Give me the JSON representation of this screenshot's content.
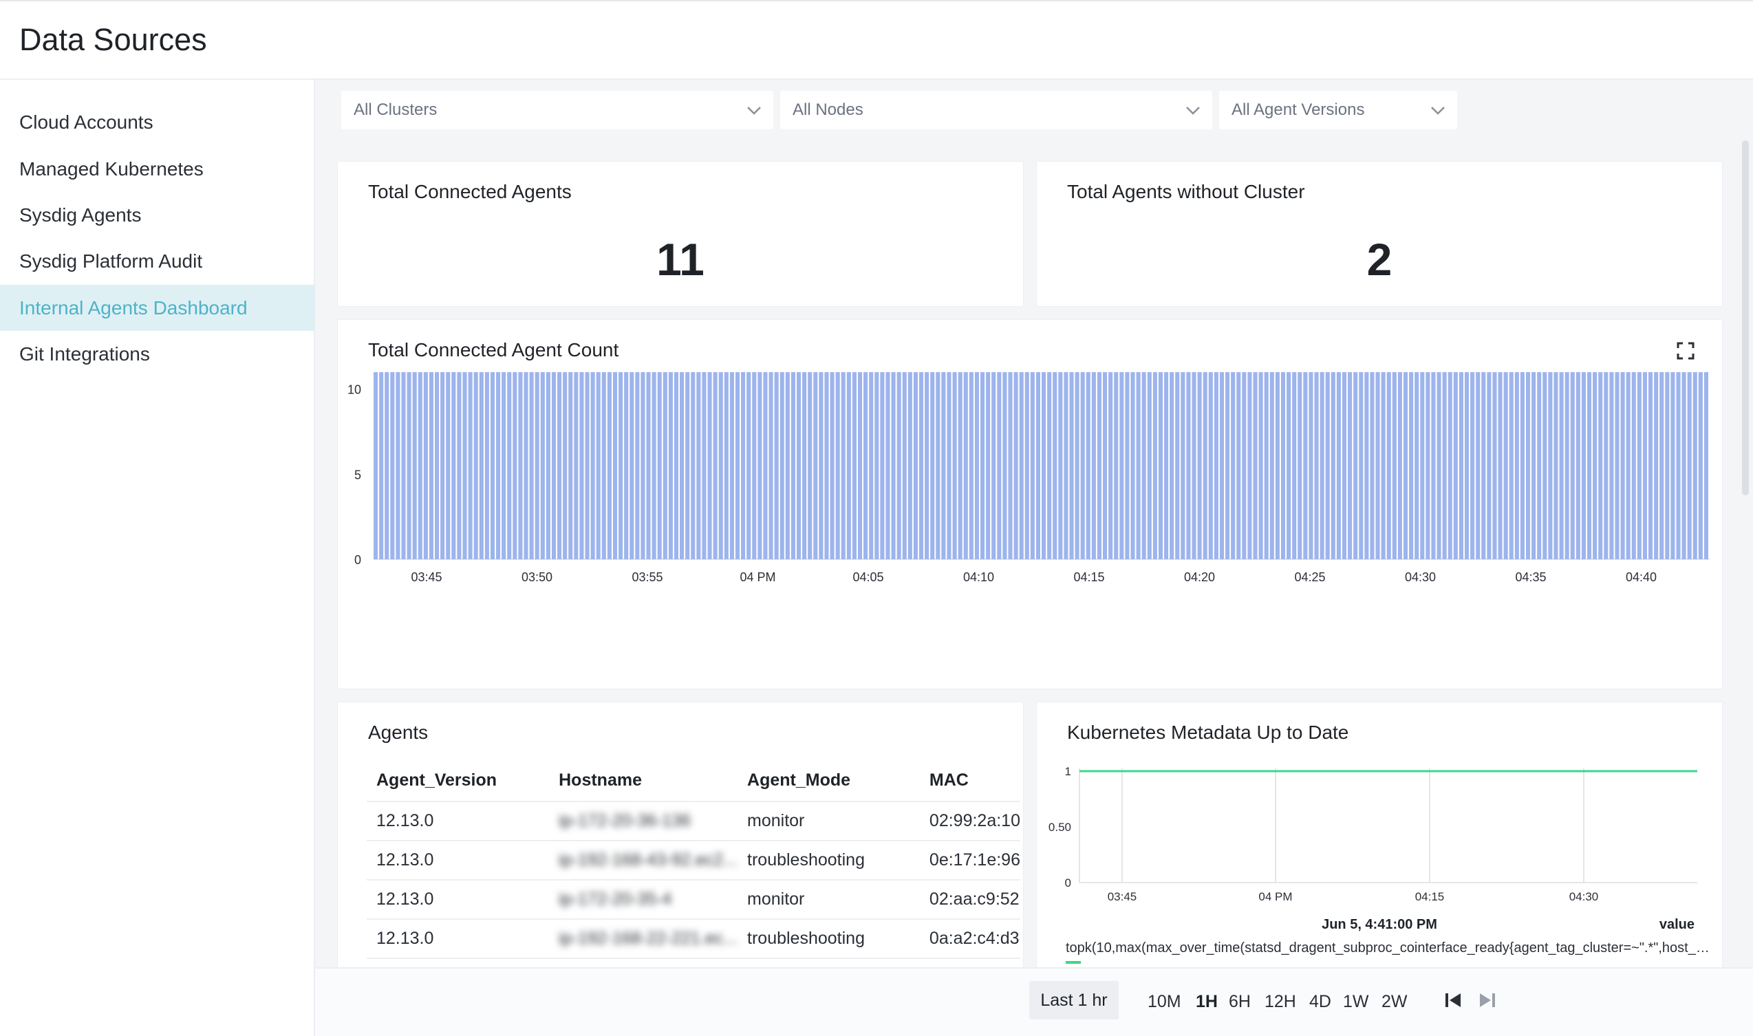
{
  "header": {
    "title": "Data Sources"
  },
  "sidebar": {
    "items": [
      {
        "label": "Cloud Accounts"
      },
      {
        "label": "Managed Kubernetes"
      },
      {
        "label": "Sysdig Agents"
      },
      {
        "label": "Sysdig Platform Audit"
      },
      {
        "label": "Internal Agents Dashboard",
        "active": true
      },
      {
        "label": "Git Integrations"
      }
    ]
  },
  "filters": {
    "clusters": "All Clusters",
    "nodes": "All Nodes",
    "versions": "All Agent Versions"
  },
  "kpis": {
    "connected_title": "Total Connected Agents",
    "connected_value": "11",
    "without_cluster_title": "Total Agents without Cluster",
    "without_cluster_value": "2"
  },
  "chart_data": [
    {
      "type": "bar",
      "title": "Total Connected Agent Count",
      "ylim": [
        0,
        11
      ],
      "yticks": [
        "0",
        "5",
        "10"
      ],
      "xticks": [
        "03:45",
        "03:50",
        "03:55",
        "04 PM",
        "04:05",
        "04:10",
        "04:15",
        "04:20",
        "04:25",
        "04:30",
        "04:35",
        "04:40"
      ],
      "bar_count": 240,
      "value_all_bars": 11,
      "color": "#9db4ec"
    },
    {
      "type": "line",
      "title": "Kubernetes Metadata Up to Date",
      "ylim": [
        0,
        1
      ],
      "yticks": [
        "0",
        "0.50",
        "1"
      ],
      "xticks": [
        "03:45",
        "04 PM",
        "04:15",
        "04:30"
      ],
      "series": [
        {
          "values_constant": 1,
          "color": "#3dd68c"
        }
      ],
      "tooltip_date": "Jun 5, 4:41:00 PM",
      "tooltip_col": "value",
      "legend": "topk(10,max(max_over_time(statsd_dragent_subproc_cointerface_ready{agent_tag_cluster=~\".*\",host_host..."
    }
  ],
  "agents": {
    "title": "Agents",
    "columns": [
      "Agent_Version",
      "Hostname",
      "Agent_Mode",
      "MAC"
    ],
    "rows": [
      [
        "12.13.0",
        "ip-172-20-36-136",
        "monitor",
        "02:99:2a:10"
      ],
      [
        "12.13.0",
        "ip-192-168-43-92.ec2...",
        "troubleshooting",
        "0e:17:1e:96"
      ],
      [
        "12.13.0",
        "ip-172-20-35-4",
        "monitor",
        "02:aa:c9:52"
      ],
      [
        "12.13.0",
        "ip-192-168-22-221.ec...",
        "troubleshooting",
        "0a:a2:c4:d3"
      ]
    ]
  },
  "timebar": {
    "range_label": "Last 1 hr",
    "zooms": [
      "10M",
      "1H",
      "6H",
      "12H",
      "4D",
      "1W",
      "2W"
    ],
    "active_zoom": "1H"
  },
  "colors": {
    "accent": "#4db3c9",
    "active_bg": "#dff0f4",
    "bar": "#9db4ec",
    "line": "#3dd68c"
  }
}
